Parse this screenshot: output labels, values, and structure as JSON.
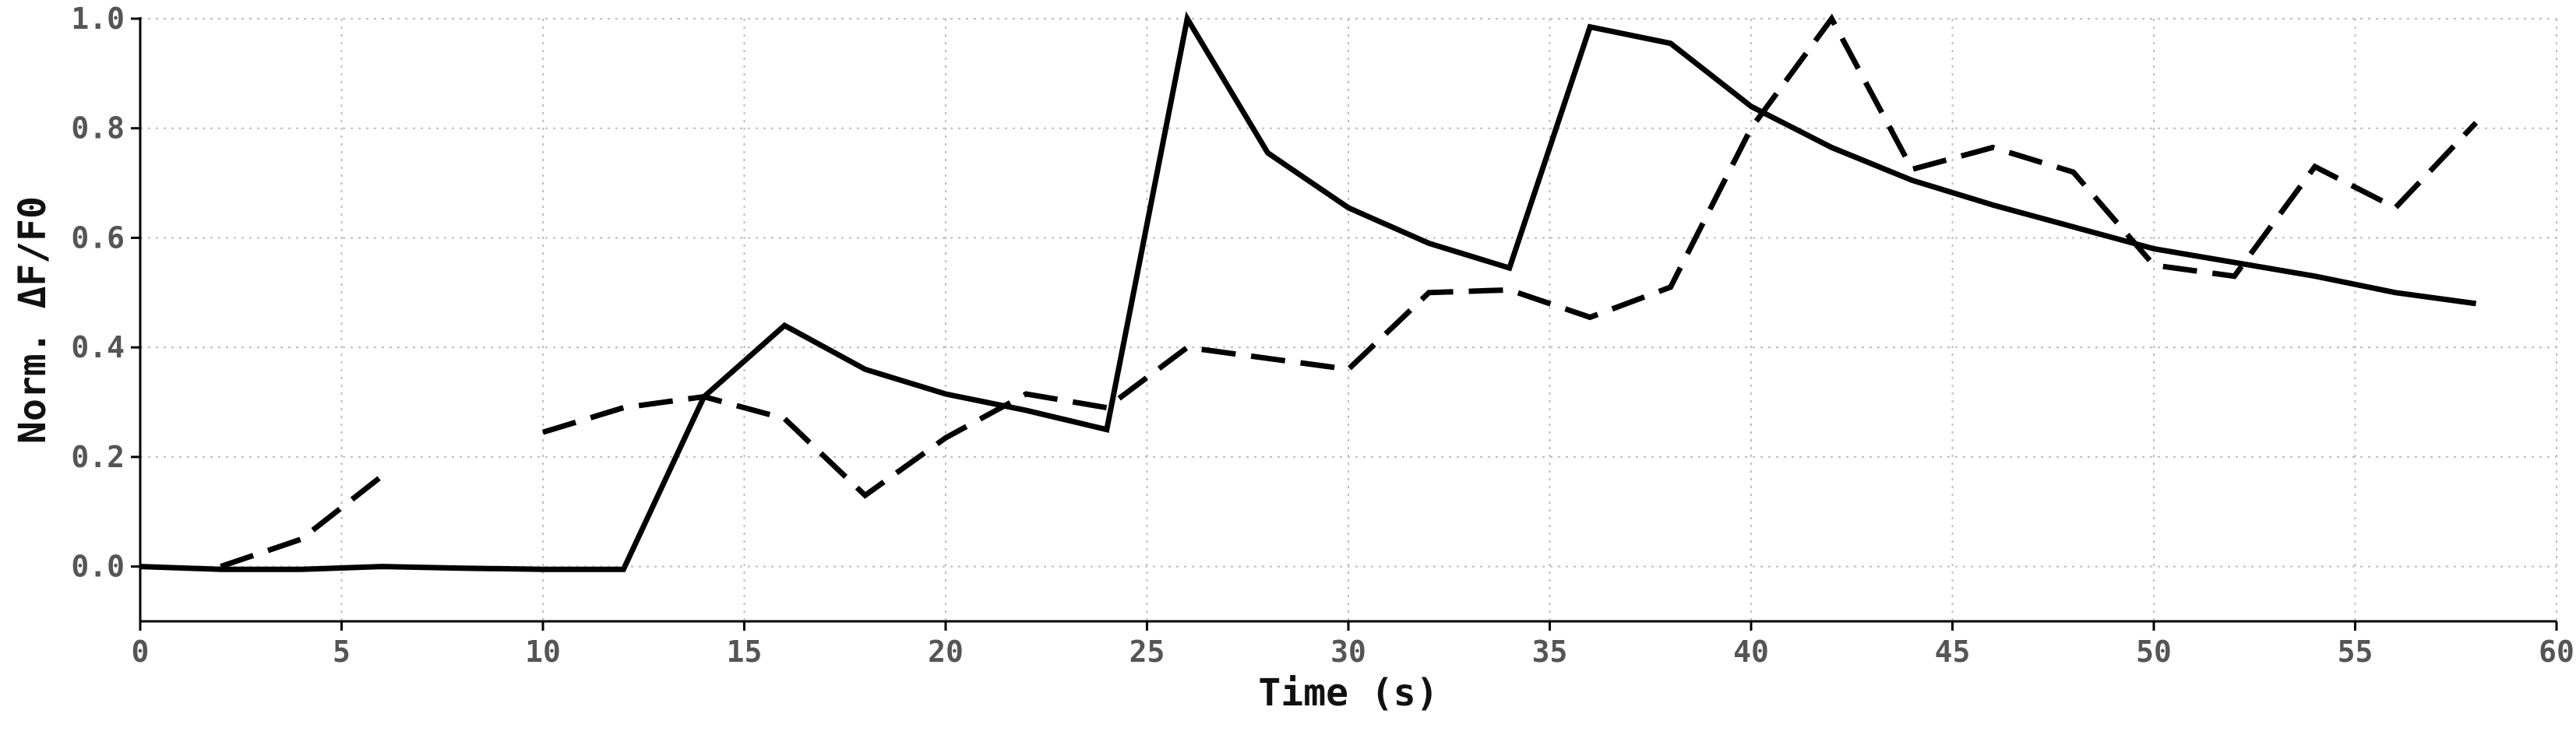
{
  "chart_data": {
    "type": "line",
    "title": "",
    "xlabel": "Time (s)",
    "ylabel": "Norm. ΔF/F0",
    "xlim": [
      0,
      60
    ],
    "ylim": [
      -0.1,
      1.0
    ],
    "xticks": [
      0,
      5,
      10,
      15,
      20,
      25,
      30,
      35,
      40,
      45,
      50,
      55,
      60
    ],
    "yticks": [
      0.0,
      0.2,
      0.4,
      0.6,
      0.8,
      1.0
    ],
    "xtick_labels": [
      "0",
      "5",
      "10",
      "15",
      "20",
      "25",
      "30",
      "35",
      "40",
      "45",
      "50",
      "55",
      "60"
    ],
    "ytick_labels": [
      "0.0",
      "0.2",
      "0.4",
      "0.6",
      "0.8",
      "1.0"
    ],
    "grid": true,
    "legend": "none",
    "series": [
      {
        "style": "solid",
        "color": "#000000",
        "x": [
          0,
          2,
          4,
          6,
          8,
          10,
          12,
          14,
          16,
          18,
          20,
          22,
          24,
          26,
          28,
          30,
          32,
          34,
          36,
          38,
          40,
          42,
          44,
          46,
          48,
          50,
          52,
          54,
          56,
          58
        ],
        "y": [
          0.0,
          -0.005,
          -0.005,
          0.0,
          -0.003,
          -0.005,
          -0.005,
          0.31,
          0.44,
          0.36,
          0.315,
          0.285,
          0.25,
          1.0,
          0.755,
          0.655,
          0.59,
          0.545,
          0.985,
          0.955,
          0.84,
          0.765,
          0.705,
          0.66,
          0.62,
          0.58,
          0.555,
          0.53,
          0.5,
          0.48
        ]
      },
      {
        "style": "dashed",
        "color": "#000000",
        "x": [
          2,
          4,
          6,
          null,
          10,
          12,
          14,
          16,
          18,
          20,
          22,
          24,
          26,
          28,
          30,
          32,
          34,
          36,
          38,
          40,
          42,
          44,
          46,
          48,
          50,
          52,
          54,
          56,
          58
        ],
        "y": [
          0.0,
          0.05,
          0.165,
          null,
          0.245,
          0.29,
          0.31,
          0.27,
          0.13,
          0.235,
          0.315,
          0.29,
          0.4,
          0.38,
          0.36,
          0.5,
          0.505,
          0.455,
          0.51,
          0.8,
          1.0,
          0.725,
          0.765,
          0.72,
          0.55,
          0.53,
          0.73,
          0.655,
          0.81
        ]
      }
    ]
  }
}
